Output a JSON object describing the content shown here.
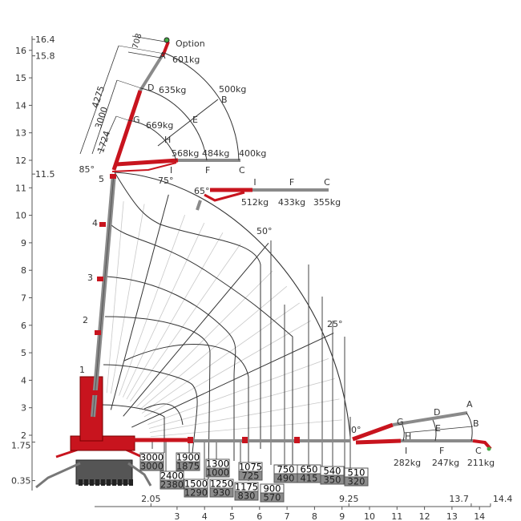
{
  "colors": {
    "boom_red": "#c8141e",
    "boom_grey": "#8a8a8a",
    "line": "#333333",
    "grid_light": "#c8c8c8",
    "box_grey": "#8c8c8c"
  },
  "y_axis": {
    "ticks": [
      "2",
      "3",
      "4",
      "5",
      "6",
      "7",
      "8",
      "9",
      "10",
      "11",
      "12",
      "13",
      "14",
      "15",
      "16"
    ],
    "extra_labels": [
      "16.4",
      "15.8",
      "11.5",
      "1.75",
      "0.35"
    ]
  },
  "x_axis": {
    "ticks": [
      "3",
      "4",
      "5",
      "6",
      "7",
      "8",
      "9",
      "10",
      "11",
      "12",
      "13",
      "14"
    ],
    "extra_labels": [
      "2.05",
      "9.25",
      "13.7",
      "14.4"
    ]
  },
  "angles": [
    "85°",
    "75°",
    "65°",
    "50°",
    "25°",
    "0°"
  ],
  "mast_sections": [
    "1",
    "2",
    "3",
    "4",
    "5"
  ],
  "jib_top": {
    "option_label": "Option",
    "dimensions": [
      "708",
      "4275",
      "3000",
      "1724"
    ],
    "points": [
      "A",
      "B",
      "C",
      "D",
      "E",
      "F",
      "G",
      "H",
      "I"
    ],
    "loads": {
      "A": "601kg",
      "B": "500kg",
      "C": "400kg",
      "D": "635kg",
      "F": "484kg",
      "G": "669kg",
      "I": "568kg"
    }
  },
  "jib_65": {
    "points": [
      "I",
      "F",
      "C"
    ],
    "loads": [
      "512kg",
      "433kg",
      "355kg"
    ]
  },
  "jib_0": {
    "points": [
      "A",
      "B",
      "C",
      "D",
      "E",
      "F",
      "G",
      "H",
      "I"
    ],
    "loads": {
      "I": "282kg",
      "F": "247kg",
      "C": "211kg"
    }
  },
  "load_table": [
    {
      "top": "3000",
      "bottom": "3000"
    },
    {
      "top": "1900",
      "bottom": "1875"
    },
    {
      "top": "1300",
      "bottom": "1000"
    },
    {
      "top": "1075",
      "bottom": "725"
    },
    {
      "top": "750",
      "bottom": "490"
    },
    {
      "top": "650",
      "bottom": "415"
    },
    {
      "top": "540",
      "bottom": "350"
    },
    {
      "top": "510",
      "bottom": "320"
    },
    {
      "top": "2400",
      "bottom": "2380"
    },
    {
      "top": "1500",
      "bottom": "1290"
    },
    {
      "top": "1250",
      "bottom": "930"
    },
    {
      "top": "1175",
      "bottom": "830"
    },
    {
      "top": "900",
      "bottom": "570"
    }
  ]
}
